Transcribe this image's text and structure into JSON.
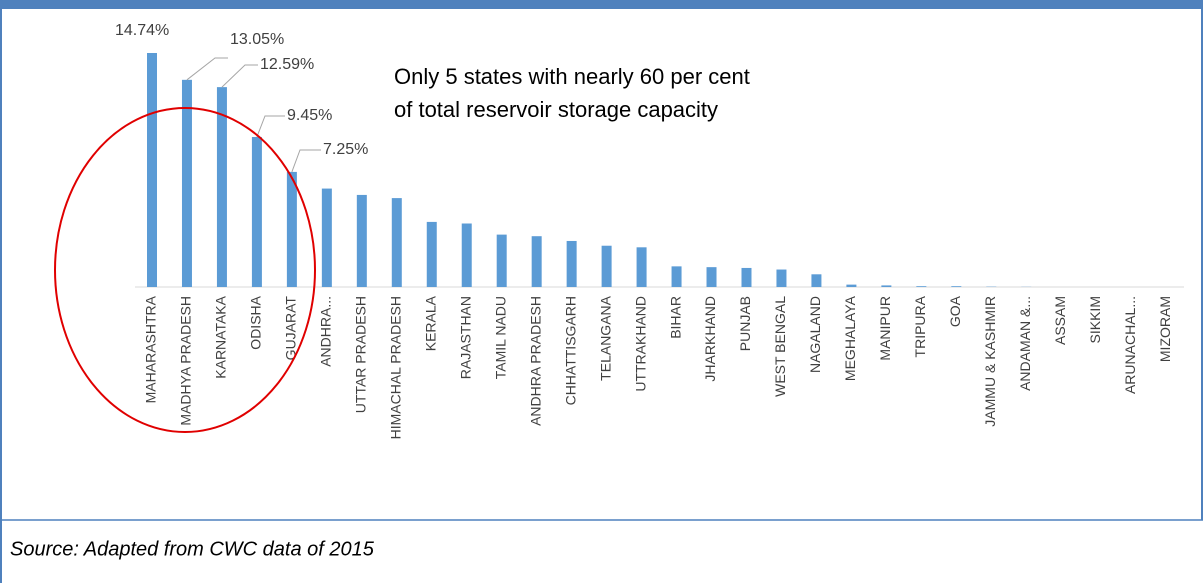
{
  "chart_data": {
    "type": "bar",
    "annotation": [
      "Only 5 states with nearly 60 per cent",
      "of total reservoir storage capacity"
    ],
    "source": "Source: Adapted from CWC data of 2015",
    "categories": [
      "MAHARASHTRA",
      "MADHYA PRADESH",
      "KARNATAKA",
      "ODISHA",
      "GUJARAT",
      "ANDHRA...",
      "UTTAR PRADESH",
      "HIMACHAL PRADESH",
      "KERALA",
      "RAJASTHAN",
      "TAMIL NADU",
      "ANDHRA PRADESH",
      "CHHATTISGARH",
      "TELANGANA",
      "UTTRAKHAND",
      "BIHAR",
      "JHARKHAND",
      "PUNJAB",
      "WEST BENGAL",
      "NAGALAND",
      "MEGHALAYA",
      "MANIPUR",
      "TRIPURA",
      "GOA",
      "JAMMU & KASHMIR",
      "ANDAMAN &...",
      "ASSAM",
      "SIKKIM",
      "ARUNACHAL...",
      "MIZORAM"
    ],
    "values": [
      14.74,
      13.05,
      12.59,
      9.45,
      7.25,
      6.2,
      5.8,
      5.6,
      4.1,
      4.0,
      3.3,
      3.2,
      2.9,
      2.6,
      2.5,
      1.3,
      1.25,
      1.2,
      1.1,
      0.8,
      0.15,
      0.1,
      0.05,
      0.05,
      0.02,
      0.01,
      0,
      0,
      0,
      0
    ],
    "value_labels": [
      "14.74%",
      "13.05%",
      "12.59%",
      "9.45%",
      "7.25%",
      null,
      null,
      null,
      null,
      null,
      null,
      null,
      null,
      null,
      null,
      null,
      null,
      null,
      null,
      null,
      null,
      null,
      null,
      null,
      null,
      null,
      null,
      null,
      null,
      null
    ],
    "color": "#5b9bd5"
  }
}
